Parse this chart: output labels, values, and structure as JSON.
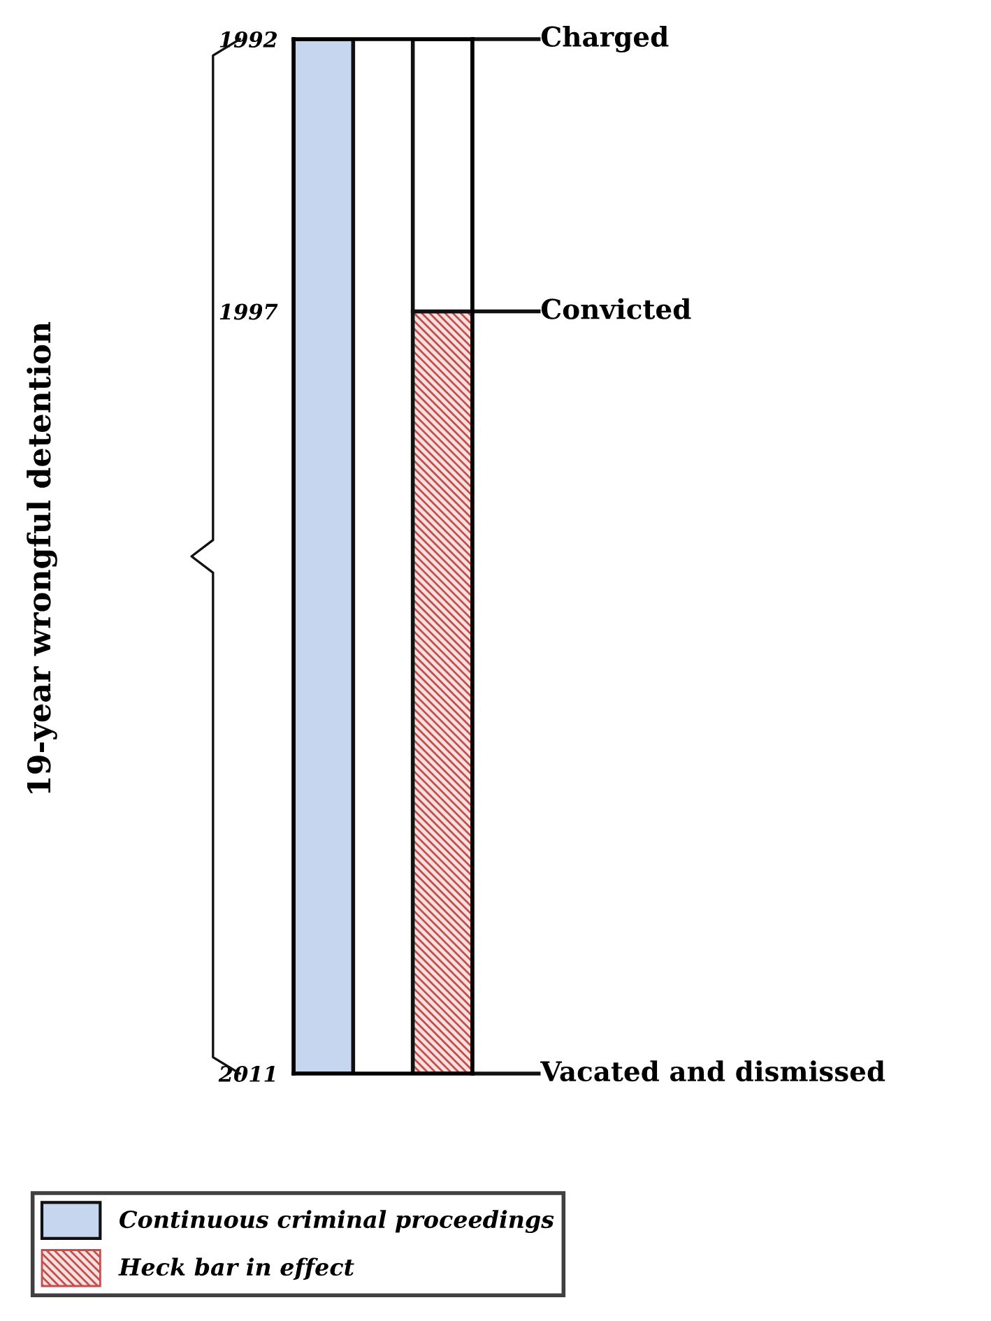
{
  "chart_data": {
    "type": "bar",
    "annotations": [
      "19-year wrongful detention"
    ],
    "categories": [
      null,
      null,
      null
    ],
    "series": [
      {
        "name": "Continuous criminal proceedings",
        "color": "#c6d6ee",
        "values": [
          19,
          null,
          null
        ],
        "base": [
          1992,
          null,
          null
        ]
      },
      {
        "name": "Heck bar in effect",
        "color": "#c0504d",
        "values": [
          null,
          null,
          14
        ],
        "base": [
          null,
          null,
          1997
        ]
      },
      {
        "color": "#ffffff",
        "values": [
          null,
          null,
          5
        ],
        "base": [
          null,
          null,
          1992
        ]
      }
    ],
    "ylim": [
      2011,
      1992
    ],
    "yticks": [
      1992,
      1997,
      2011
    ],
    "ref_lines": [
      {
        "axis": "y",
        "value": 1992,
        "label": "Charged"
      },
      {
        "axis": "y",
        "value": 1997,
        "label": "Convicted"
      },
      {
        "axis": "y",
        "value": 2011,
        "label": "Vacated and dismissed"
      }
    ],
    "legend": "bottom left",
    "grid": false
  }
}
